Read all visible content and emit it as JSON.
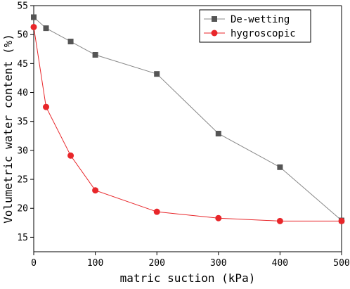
{
  "chart_data": {
    "type": "line",
    "xlabel": "matric suction (kPa)",
    "ylabel": "Volumetric water content (%)",
    "xlim": [
      0,
      500
    ],
    "ylim": [
      12.5,
      55
    ],
    "x_ticks": [
      0,
      100,
      200,
      300,
      400,
      500
    ],
    "y_ticks": [
      15,
      20,
      25,
      30,
      35,
      40,
      45,
      50,
      55
    ],
    "grid": false,
    "legend_position": "top-right",
    "series": [
      {
        "name": "De-wetting",
        "marker": "square",
        "color": "#555555",
        "line_color": "#888888",
        "x": [
          0,
          20,
          60,
          100,
          200,
          300,
          400,
          500
        ],
        "y": [
          53.0,
          51.1,
          48.8,
          46.5,
          43.2,
          32.9,
          27.1,
          17.9
        ]
      },
      {
        "name": "hygroscopic",
        "marker": "circle",
        "color": "#e8262a",
        "line_color": "#e8262a",
        "x": [
          0,
          20,
          60,
          100,
          200,
          300,
          400,
          500
        ],
        "y": [
          51.3,
          37.5,
          29.1,
          23.1,
          19.4,
          18.3,
          17.8,
          17.8
        ]
      }
    ]
  }
}
